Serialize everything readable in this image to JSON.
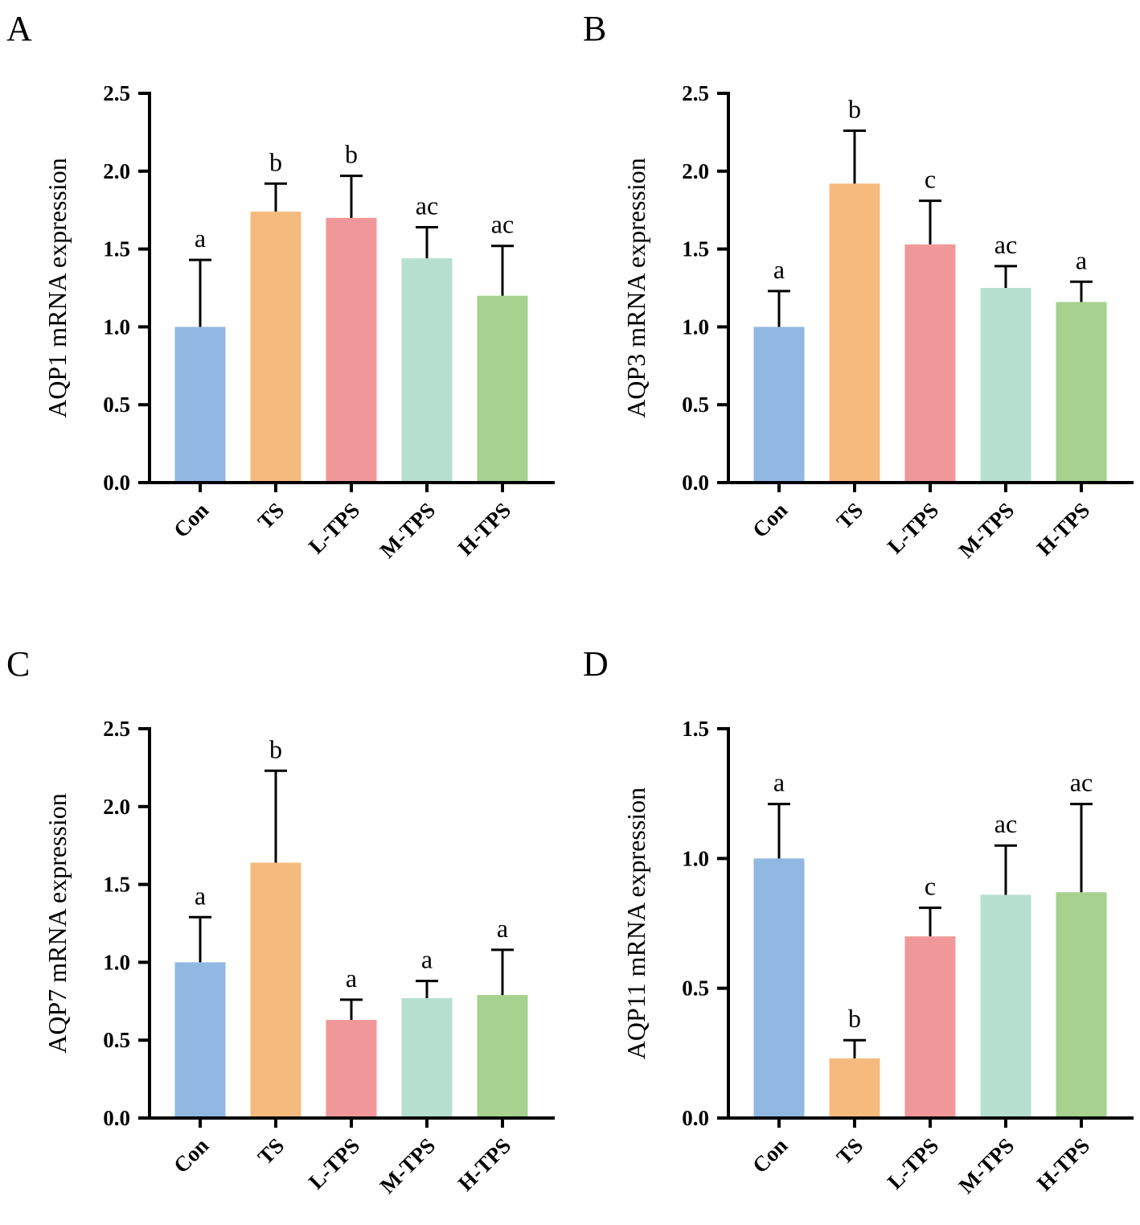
{
  "colors": {
    "Con": "#90b8e2",
    "TS": "#f5bb7e",
    "L-TPS": "#f09899",
    "M-TPS": "#b6dfd0",
    "H-TPS": "#a6d18e"
  },
  "chart_data": [
    {
      "type": "bar",
      "panel": "A",
      "ylabel": "AQP1 mRNA expression",
      "categories": [
        "Con",
        "TS",
        "L-TPS",
        "M-TPS",
        "H-TPS"
      ],
      "values": [
        1.0,
        1.74,
        1.7,
        1.44,
        1.2
      ],
      "error_upper": [
        1.43,
        1.92,
        1.97,
        1.64,
        1.52
      ],
      "significance": [
        "a",
        "b",
        "b",
        "ac",
        "ac"
      ],
      "ylim": [
        0,
        2.5
      ],
      "yticks": [
        "0.0",
        "0.5",
        "1.0",
        "1.5",
        "2.0",
        "2.5"
      ]
    },
    {
      "type": "bar",
      "panel": "B",
      "ylabel": "AQP3 mRNA expression",
      "categories": [
        "Con",
        "TS",
        "L-TPS",
        "M-TPS",
        "H-TPS"
      ],
      "values": [
        1.0,
        1.92,
        1.53,
        1.25,
        1.16
      ],
      "error_upper": [
        1.23,
        2.26,
        1.81,
        1.39,
        1.29
      ],
      "significance": [
        "a",
        "b",
        "c",
        "ac",
        "a"
      ],
      "ylim": [
        0,
        2.5
      ],
      "yticks": [
        "0.0",
        "0.5",
        "1.0",
        "1.5",
        "2.0",
        "2.5"
      ]
    },
    {
      "type": "bar",
      "panel": "C",
      "ylabel": "AQP7 mRNA expression",
      "categories": [
        "Con",
        "TS",
        "L-TPS",
        "M-TPS",
        "H-TPS"
      ],
      "values": [
        1.0,
        1.64,
        0.63,
        0.77,
        0.79
      ],
      "error_upper": [
        1.29,
        2.23,
        0.76,
        0.88,
        1.08
      ],
      "significance": [
        "a",
        "b",
        "a",
        "a",
        "a"
      ],
      "ylim": [
        0,
        2.5
      ],
      "yticks": [
        "0.0",
        "0.5",
        "1.0",
        "1.5",
        "2.0",
        "2.5"
      ]
    },
    {
      "type": "bar",
      "panel": "D",
      "ylabel": "AQP11 mRNA expression",
      "categories": [
        "Con",
        "TS",
        "L-TPS",
        "M-TPS",
        "H-TPS"
      ],
      "values": [
        1.0,
        0.23,
        0.7,
        0.86,
        0.87
      ],
      "error_upper": [
        1.21,
        0.3,
        0.81,
        1.05,
        1.21
      ],
      "significance": [
        "a",
        "b",
        "c",
        "ac",
        "ac"
      ],
      "ylim": [
        0,
        1.5
      ],
      "yticks": [
        "0.0",
        "0.5",
        "1.0",
        "1.5"
      ]
    }
  ]
}
